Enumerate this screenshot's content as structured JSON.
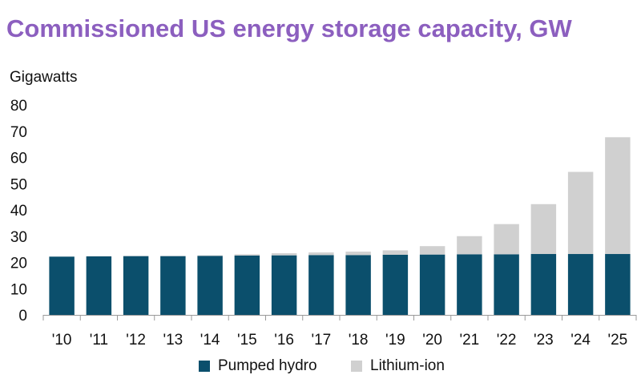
{
  "chart_data": {
    "type": "bar",
    "stacked": true,
    "title": "Commissioned US energy storage capacity, GW",
    "ylabel": "Gigawatts",
    "xlabel": "",
    "ylim": [
      0,
      80
    ],
    "yticks": [
      "0",
      "10",
      "20",
      "30",
      "40",
      "50",
      "60",
      "70",
      "80"
    ],
    "grid": false,
    "legend_position": "bottom",
    "categories": [
      "'10",
      "'11",
      "'12",
      "'13",
      "'14",
      "'15",
      "'16",
      "'17",
      "'18",
      "'19",
      "'20",
      "'21",
      "'22",
      "'23",
      "'24",
      "'25"
    ],
    "series": [
      {
        "name": "Pumped hydro",
        "color": "#0b4f6c",
        "values": [
          22.2,
          22.3,
          22.4,
          22.4,
          22.5,
          22.6,
          22.7,
          22.8,
          22.8,
          22.9,
          23.0,
          23.1,
          23.1,
          23.2,
          23.2,
          23.2
        ]
      },
      {
        "name": "Lithium-ion",
        "color": "#d0d0d0",
        "values": [
          0.0,
          0.1,
          0.1,
          0.1,
          0.2,
          0.5,
          0.8,
          1.0,
          1.3,
          1.7,
          3.2,
          6.9,
          11.5,
          19.0,
          31.3,
          44.5
        ]
      }
    ]
  }
}
